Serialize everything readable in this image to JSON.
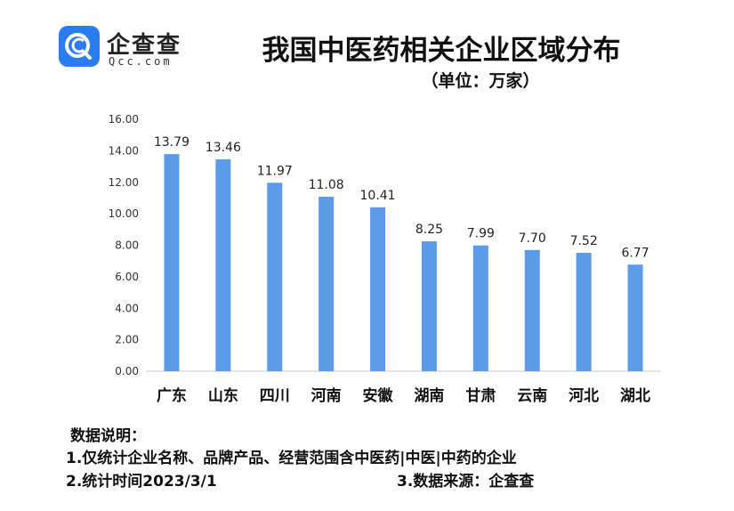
{
  "brand": {
    "name": "企查查",
    "domain": "Qcc.com",
    "accent": "#2b7cf0"
  },
  "chart_data": {
    "type": "bar",
    "title": "我国中医药相关企业区域分布",
    "subtitle": "（单位：万家）",
    "xlabel": "",
    "ylabel": "",
    "categories": [
      "广东",
      "山东",
      "四川",
      "河南",
      "安徽",
      "湖南",
      "甘肃",
      "云南",
      "河北",
      "湖北"
    ],
    "values": [
      13.79,
      13.46,
      11.97,
      11.08,
      10.41,
      8.25,
      7.99,
      7.7,
      7.52,
      6.77
    ],
    "data_labels": [
      "13.79",
      "13.46",
      "11.97",
      "11.08",
      "10.41",
      "8.25",
      "7.99",
      "7.70",
      "7.52",
      "6.77"
    ],
    "ylim": [
      0,
      16
    ],
    "yticks": [
      "0.00",
      "2.00",
      "4.00",
      "6.00",
      "8.00",
      "10.00",
      "12.00",
      "14.00",
      "16.00"
    ],
    "bar_color": "#5b9be8",
    "grid": false,
    "legend": "none"
  },
  "notes": {
    "heading": "数据说明：",
    "line1": "1.仅统计企业名称、品牌产品、经营范围含中医药|中医|中药的企业",
    "line2": "2.统计时间2023/3/1",
    "line3": "3.数据来源：企查查"
  }
}
